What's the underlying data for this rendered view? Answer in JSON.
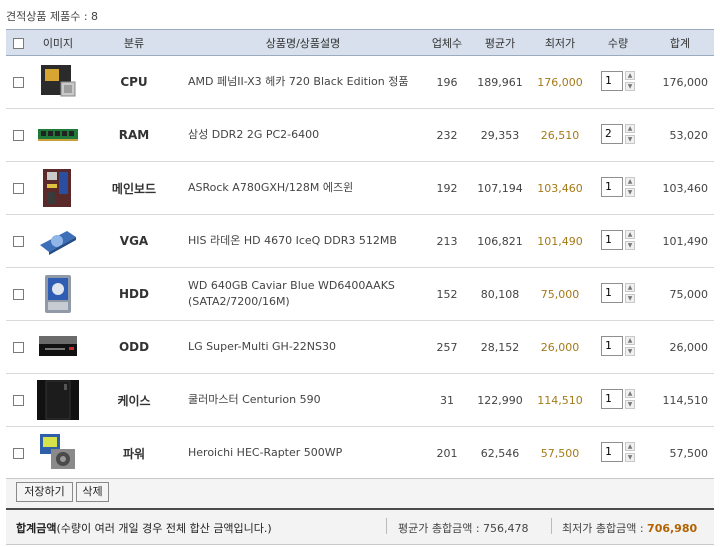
{
  "caption": {
    "label": "견적상품 제품수 : 8"
  },
  "headers": {
    "image": "이미지",
    "category": "분류",
    "name": "상품명/상품설명",
    "vendors": "업체수",
    "avg": "평균가",
    "min": "최저가",
    "qty": "수량",
    "total": "합계"
  },
  "rows": [
    {
      "category": "CPU",
      "name": "AMD 페넘II-X3 헤카 720 Black Edition 정품",
      "vendors": "196",
      "avg": "189,961",
      "min": "176,000",
      "qty": "1",
      "total": "176,000",
      "image_icon": "cpu-box-icon"
    },
    {
      "category": "RAM",
      "name": "삼성 DDR2 2G PC2-6400",
      "vendors": "232",
      "avg": "29,353",
      "min": "26,510",
      "qty": "2",
      "total": "53,020",
      "image_icon": "ram-module-icon"
    },
    {
      "category": "메인보드",
      "name": "ASRock A780GXH/128M 에즈윈",
      "vendors": "192",
      "avg": "107,194",
      "min": "103,460",
      "qty": "1",
      "total": "103,460",
      "image_icon": "motherboard-icon"
    },
    {
      "category": "VGA",
      "name": "HIS 라데온 HD 4670 IceQ DDR3 512MB",
      "vendors": "213",
      "avg": "106,821",
      "min": "101,490",
      "qty": "1",
      "total": "101,490",
      "image_icon": "graphics-card-icon"
    },
    {
      "category": "HDD",
      "name": "WD 640GB Caviar Blue WD6400AAKS",
      "name2": "(SATA2/7200/16M)",
      "vendors": "152",
      "avg": "80,108",
      "min": "75,000",
      "qty": "1",
      "total": "75,000",
      "image_icon": "hard-drive-icon"
    },
    {
      "category": "ODD",
      "name": "LG Super-Multi GH-22NS30",
      "vendors": "257",
      "avg": "28,152",
      "min": "26,000",
      "qty": "1",
      "total": "26,000",
      "image_icon": "optical-drive-icon"
    },
    {
      "category": "케이스",
      "name": "쿨러마스터 Centurion 590",
      "vendors": "31",
      "avg": "122,990",
      "min": "114,510",
      "qty": "1",
      "total": "114,510",
      "image_icon": "pc-case-icon"
    },
    {
      "category": "파워",
      "name": "Heroichi HEC-Rapter 500WP",
      "vendors": "201",
      "avg": "62,546",
      "min": "57,500",
      "qty": "1",
      "total": "57,500",
      "image_icon": "power-supply-icon"
    }
  ],
  "actions": {
    "save": "저장하기",
    "delete": "삭제"
  },
  "totals": {
    "title": "합계금액",
    "note": "(수량이 여러 개일 경우 전체 합산 금액입니다.)",
    "avg_label": "평균가 총합금액 : ",
    "avg_value": "756,478",
    "min_label": "최저가 총합금액 : ",
    "min_value": "706,980"
  },
  "colors": {
    "header_bg": "#d7e0ec",
    "min_price": "#a47a18",
    "min_total": "#b26200"
  }
}
